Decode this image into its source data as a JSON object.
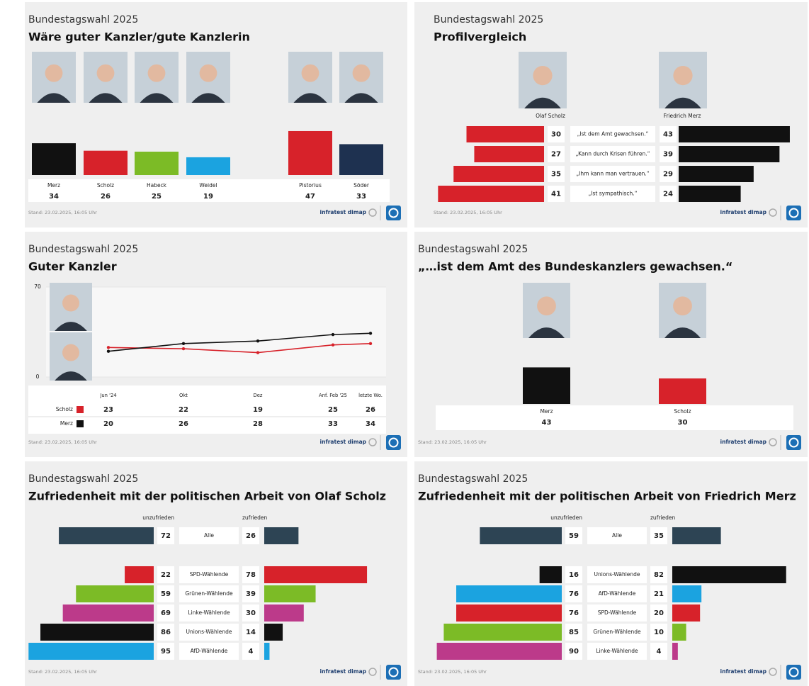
{
  "chart_data": [
    {
      "type": "bar",
      "supertitle": "Bundestagswahl 2025",
      "title": "Wäre guter Kanzler/gute Kanzlerin",
      "categories": [
        "Merz",
        "Scholz",
        "Habeck",
        "Weidel",
        "Pistorius",
        "Söder"
      ],
      "values": [
        34,
        26,
        25,
        19,
        47,
        33
      ],
      "colors": [
        "#111111",
        "#d7222a",
        "#7cbb26",
        "#1ba3e0",
        "#d7222a",
        "#1e3150"
      ],
      "footer": "Stand: 23.02.2025, 16:05 Uhr",
      "source": "infratest dimap"
    },
    {
      "type": "butterfly",
      "supertitle": "Bundestagswahl 2025",
      "title": "Profilvergleich",
      "categories": [
        "„Ist dem Amt gewachsen.“",
        "„Kann durch Krisen führen.“",
        "„Ihm kann man vertrauen.“",
        "„Ist sympathisch.“"
      ],
      "series": [
        {
          "name": "Olaf Scholz",
          "color": "#d7222a",
          "values": [
            30,
            27,
            35,
            41
          ]
        },
        {
          "name": "Friedrich Merz",
          "color": "#111111",
          "values": [
            43,
            39,
            29,
            24
          ]
        }
      ],
      "footer": "Stand: 23.02.2025, 16:05 Uhr",
      "source": "infratest dimap"
    },
    {
      "type": "line",
      "supertitle": "Bundestagswahl 2025",
      "title": "Guter Kanzler",
      "categories": [
        "Jun '24",
        "Okt",
        "Dez",
        "Anf. Feb '25",
        "letzte Wo."
      ],
      "series": [
        {
          "name": "Scholz",
          "color": "#d7222a",
          "values": [
            23,
            22,
            19,
            25,
            26
          ]
        },
        {
          "name": "Merz",
          "color": "#111111",
          "values": [
            20,
            26,
            28,
            33,
            34
          ]
        }
      ],
      "ylim": [
        0,
        70
      ],
      "yticks": [
        0,
        70
      ],
      "grid": true,
      "footer": "Stand: 23.02.2025, 16:05 Uhr",
      "source": "infratest dimap"
    },
    {
      "type": "bar",
      "supertitle": "Bundestagswahl 2025",
      "title": "„…ist dem Amt des Bundeskanzlers gewachsen.“",
      "categories": [
        "Merz",
        "Scholz"
      ],
      "values": [
        43,
        30
      ],
      "colors": [
        "#111111",
        "#d7222a"
      ],
      "footer": "Stand: 23.02.2025, 16:05 Uhr",
      "source": "infratest dimap"
    },
    {
      "type": "butterfly",
      "supertitle": "Bundestagswahl 2025",
      "title": "Zufriedenheit mit der politischen Arbeit von Olaf Scholz",
      "categories": [
        "Alle",
        "SPD-Wählende",
        "Grünen-Wählende",
        "Linke-Wählende",
        "Unions-Wählende",
        "AfD-Wählende"
      ],
      "series": [
        {
          "name": "unzufrieden",
          "values": [
            72,
            22,
            59,
            69,
            86,
            95
          ]
        },
        {
          "name": "zufrieden",
          "values": [
            26,
            78,
            39,
            30,
            14,
            4
          ]
        }
      ],
      "colors": [
        "#2d4454",
        "#d7222a",
        "#7cbb26",
        "#bc3a8a",
        "#111111",
        "#1ba3e0"
      ],
      "footer": "Stand: 23.02.2025, 16:05 Uhr",
      "source": "infratest dimap"
    },
    {
      "type": "butterfly",
      "supertitle": "Bundestagswahl 2025",
      "title": "Zufriedenheit mit der politischen Arbeit von Friedrich Merz",
      "categories": [
        "Alle",
        "Unions-Wählende",
        "AfD-Wählende",
        "SPD-Wählende",
        "Grünen-Wählende",
        "Linke-Wählende"
      ],
      "series": [
        {
          "name": "unzufrieden",
          "values": [
            59,
            16,
            76,
            76,
            85,
            90
          ]
        },
        {
          "name": "zufrieden",
          "values": [
            35,
            82,
            21,
            20,
            10,
            4
          ]
        }
      ],
      "colors": [
        "#2d4454",
        "#111111",
        "#1ba3e0",
        "#d7222a",
        "#7cbb26",
        "#bc3a8a"
      ],
      "footer": "Stand: 23.02.2025, 16:05 Uhr",
      "source": "infratest dimap"
    }
  ]
}
